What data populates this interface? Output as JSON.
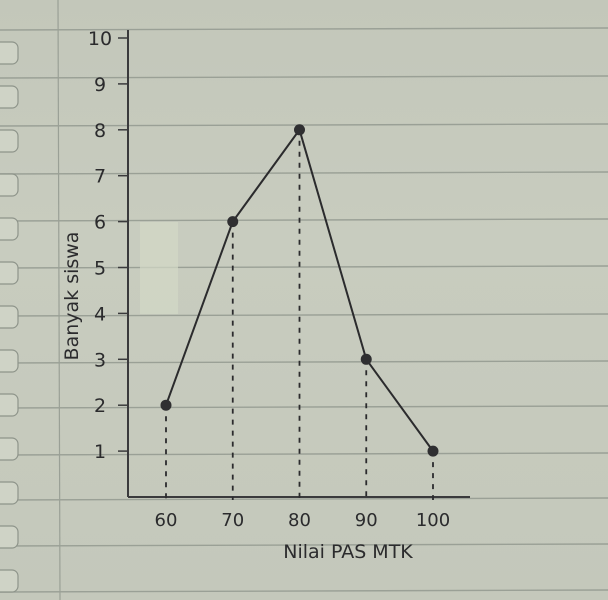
{
  "chart_data": {
    "type": "line",
    "title": "",
    "xlabel": "Nilai PAS MTK",
    "ylabel": "Banyak siswa",
    "x": [
      60,
      70,
      80,
      90,
      100
    ],
    "categories": [
      "60",
      "70",
      "80",
      "90",
      "100"
    ],
    "series": [
      {
        "values": [
          2,
          6,
          8,
          3,
          1
        ]
      }
    ],
    "yticks": [
      "1",
      "2",
      "3",
      "4",
      "5",
      "6",
      "7",
      "8",
      "9",
      "10"
    ],
    "ylim": [
      0,
      10
    ],
    "drop_lines": true,
    "grid": false,
    "colors": {
      "line": "#2b2b2d",
      "paper": "#c6cabd",
      "ruling": "#9aa096"
    }
  }
}
